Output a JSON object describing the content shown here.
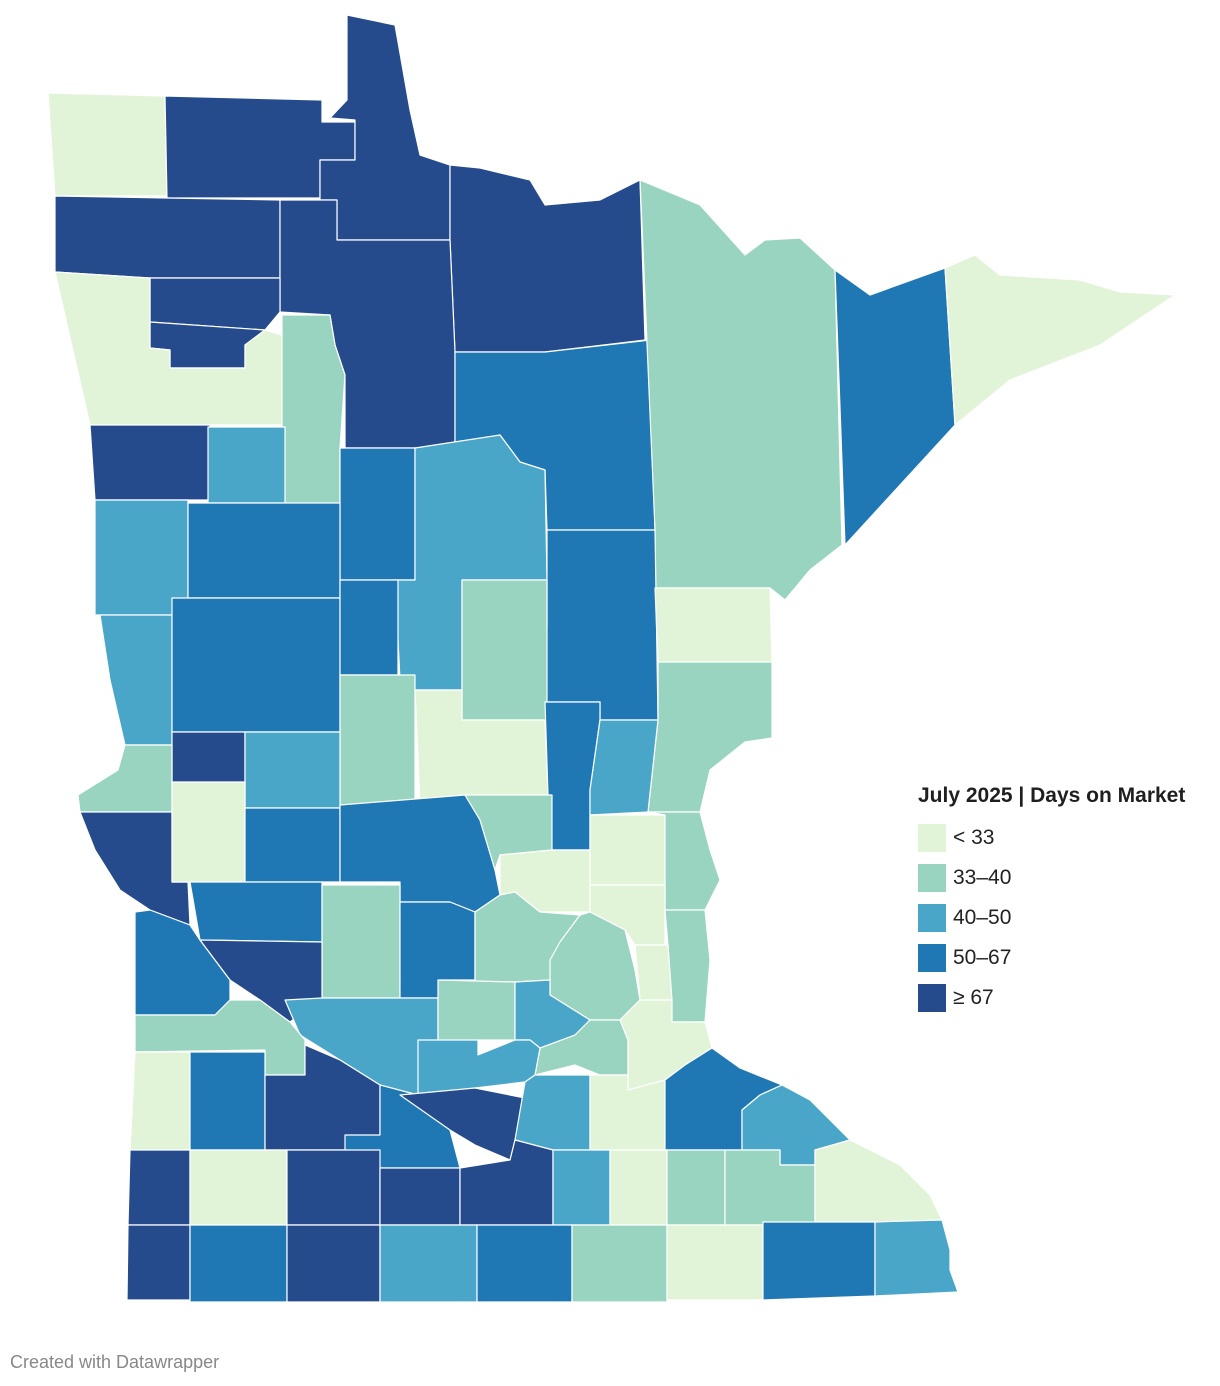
{
  "legend": {
    "title": "July 2025 | Days on Market",
    "items": [
      {
        "label": "< 33",
        "color": "#e2f4d8"
      },
      {
        "label": "33–40",
        "color": "#98d4c0"
      },
      {
        "label": "40–50",
        "color": "#4aa6c8"
      },
      {
        "label": "50–67",
        "color": "#1f78b4"
      },
      {
        "label": "≥ 67",
        "color": "#254b8c"
      }
    ]
  },
  "footer": {
    "credit": "Created with Datawrapper"
  }
}
